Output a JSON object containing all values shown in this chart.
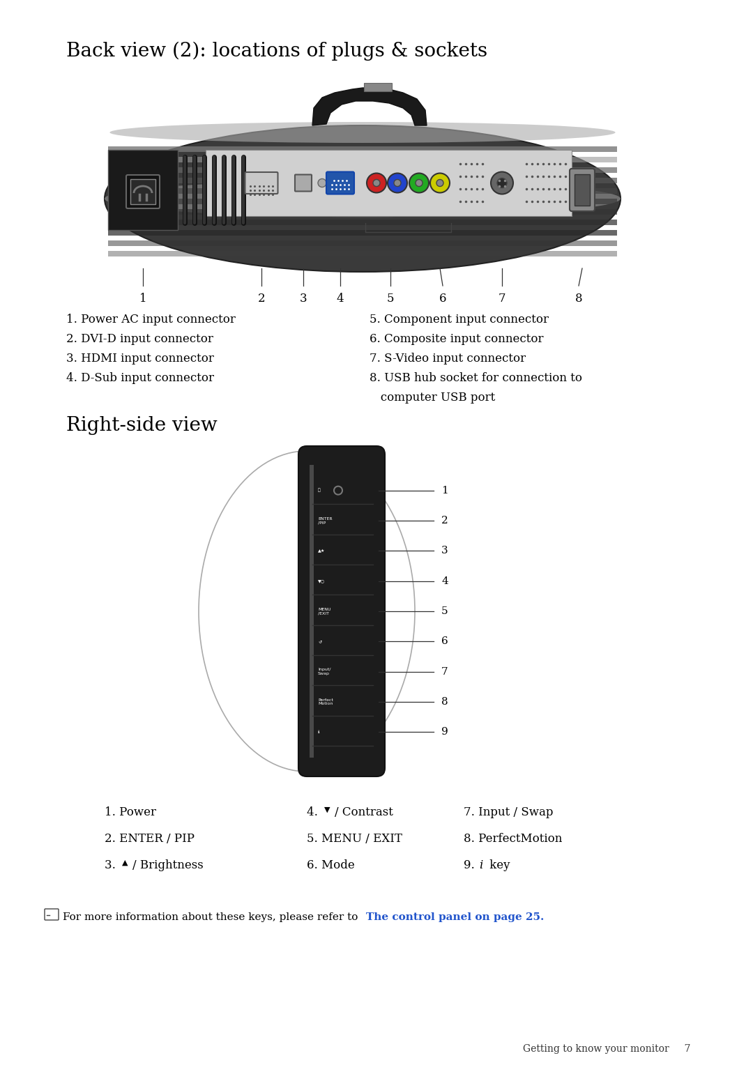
{
  "title1": "Back view (2): locations of plugs & sockets",
  "title2": "Right-side view",
  "back_labels": [
    "1",
    "2",
    "3",
    "4",
    "5",
    "6",
    "7",
    "8"
  ],
  "back_desc_left": [
    "1. Power AC input connector",
    "2. DVI-D input connector",
    "3. HDMI input connector",
    "4. D-Sub input connector"
  ],
  "back_desc_right": [
    "5. Component input connector",
    "6. Composite input connector",
    "7. S-Video input connector",
    "8. USB hub socket for connection to",
    "   computer USB port"
  ],
  "side_desc_col1": [
    "1. Power",
    "2. ENTER / PIP"
  ],
  "side_desc_col2": [
    "5. MENU / EXIT",
    "6. Mode"
  ],
  "side_desc_col3": [
    "7. Input / Swap",
    "8. PerfectMotion",
    "9. i key"
  ],
  "note_plain": "For more information about these keys, please refer to ",
  "note_link": "The control panel on page 25.",
  "footer_text": "Getting to know your monitor     7",
  "bg_color": "#ffffff",
  "text_color": "#000000",
  "link_color": "#2255cc"
}
